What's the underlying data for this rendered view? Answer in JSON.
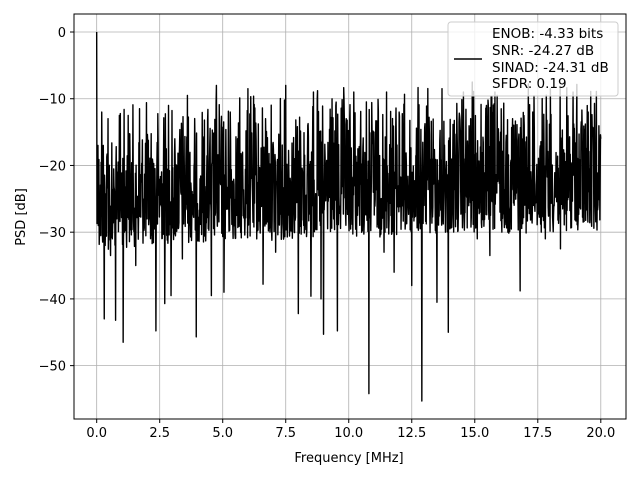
{
  "chart_data": {
    "type": "line",
    "xlabel": "Frequency [MHz]",
    "ylabel": "PSD [dB]",
    "xlim": [
      -0.9,
      21.0
    ],
    "ylim": [
      -58.0,
      2.7
    ],
    "xticks": [
      0.0,
      2.5,
      5.0,
      7.5,
      10.0,
      12.5,
      15.0,
      17.5,
      20.0
    ],
    "xtick_labels": [
      "0.0",
      "2.5",
      "5.0",
      "7.5",
      "10.0",
      "12.5",
      "15.0",
      "17.5",
      "20.0"
    ],
    "yticks": [
      0,
      -10,
      -20,
      -30,
      -40,
      -50
    ],
    "ytick_labels": [
      "0",
      "−10",
      "−20",
      "−30",
      "−40",
      "−50"
    ],
    "grid": true,
    "legend_position": "top-right",
    "series": [
      {
        "name": "ENOB: -4.33 bits\nSNR: -24.27 dB\nSINAD: -24.31 dB\nSFDR: 0.19",
        "legend_lines": [
          "ENOB: -4.33 bits",
          "SNR: -24.27 dB",
          "SINAD: -24.31 dB",
          "SFDR: 0.19"
        ],
        "color": "#000000",
        "x_range": [
          0.0,
          20.0
        ],
        "points": [
          [
            0.0,
            0.0
          ],
          [
            0.05,
            -17.0
          ],
          [
            0.12,
            -27.2
          ],
          [
            0.2,
            -12.0
          ],
          [
            0.25,
            -30.0
          ],
          [
            0.3,
            -43.0
          ],
          [
            0.35,
            -28.0
          ],
          [
            0.45,
            -13.0
          ],
          [
            0.55,
            -33.5
          ],
          [
            0.62,
            -31.0
          ],
          [
            0.75,
            -43.2
          ],
          [
            0.8,
            -28.0
          ],
          [
            0.9,
            -12.5
          ],
          [
            1.05,
            -46.5
          ],
          [
            1.1,
            -30.0
          ],
          [
            1.25,
            -12.5
          ],
          [
            1.55,
            -35.0
          ],
          [
            1.7,
            -11.5
          ],
          [
            2.0,
            -28.0
          ],
          [
            2.35,
            -44.8
          ],
          [
            2.5,
            -24.0
          ],
          [
            2.7,
            -40.7
          ],
          [
            2.85,
            -11.0
          ],
          [
            2.95,
            -39.5
          ],
          [
            3.2,
            -20.0
          ],
          [
            3.4,
            -34.0
          ],
          [
            3.6,
            -9.5
          ],
          [
            3.95,
            -45.7
          ],
          [
            4.1,
            -22.0
          ],
          [
            4.55,
            -39.5
          ],
          [
            4.75,
            -8.0
          ],
          [
            5.05,
            -39.0
          ],
          [
            5.3,
            -12.0
          ],
          [
            5.7,
            -27.0
          ],
          [
            6.0,
            -8.5
          ],
          [
            6.6,
            -37.8
          ],
          [
            6.7,
            -13.0
          ],
          [
            7.1,
            -33.0
          ],
          [
            7.5,
            -8.0
          ],
          [
            8.0,
            -42.2
          ],
          [
            8.1,
            -20.0
          ],
          [
            8.5,
            -39.6
          ],
          [
            8.6,
            -9.0
          ],
          [
            8.9,
            -40.0
          ],
          [
            9.0,
            -45.3
          ],
          [
            9.2,
            -22.0
          ],
          [
            9.5,
            -10.5
          ],
          [
            9.55,
            -44.8
          ],
          [
            9.9,
            -13.0
          ],
          [
            10.0,
            -28.0
          ],
          [
            10.2,
            -9.0
          ],
          [
            10.8,
            -54.2
          ],
          [
            11.0,
            -15.0
          ],
          [
            11.4,
            -33.0
          ],
          [
            11.5,
            -9.0
          ],
          [
            11.8,
            -36.0
          ],
          [
            12.0,
            -12.0
          ],
          [
            12.5,
            -38.0
          ],
          [
            12.9,
            -55.3
          ],
          [
            13.1,
            -20.0
          ],
          [
            13.5,
            -40.5
          ],
          [
            13.7,
            -8.5
          ],
          [
            13.95,
            -45.0
          ],
          [
            14.3,
            -15.0
          ],
          [
            14.6,
            -27.0
          ],
          [
            14.9,
            -7.5
          ],
          [
            15.1,
            -31.0
          ],
          [
            15.6,
            -33.5
          ],
          [
            15.8,
            -9.0
          ],
          [
            16.0,
            -27.0
          ],
          [
            16.5,
            -13.0
          ],
          [
            16.8,
            -38.8
          ],
          [
            17.3,
            -12.0
          ],
          [
            17.8,
            -31.0
          ],
          [
            18.0,
            -8.5
          ],
          [
            18.4,
            -32.5
          ],
          [
            18.9,
            -9.0
          ],
          [
            19.3,
            -28.5
          ],
          [
            19.5,
            -12.0
          ],
          [
            19.9,
            -23.0
          ],
          [
            20.0,
            -16.0
          ]
        ]
      }
    ]
  }
}
